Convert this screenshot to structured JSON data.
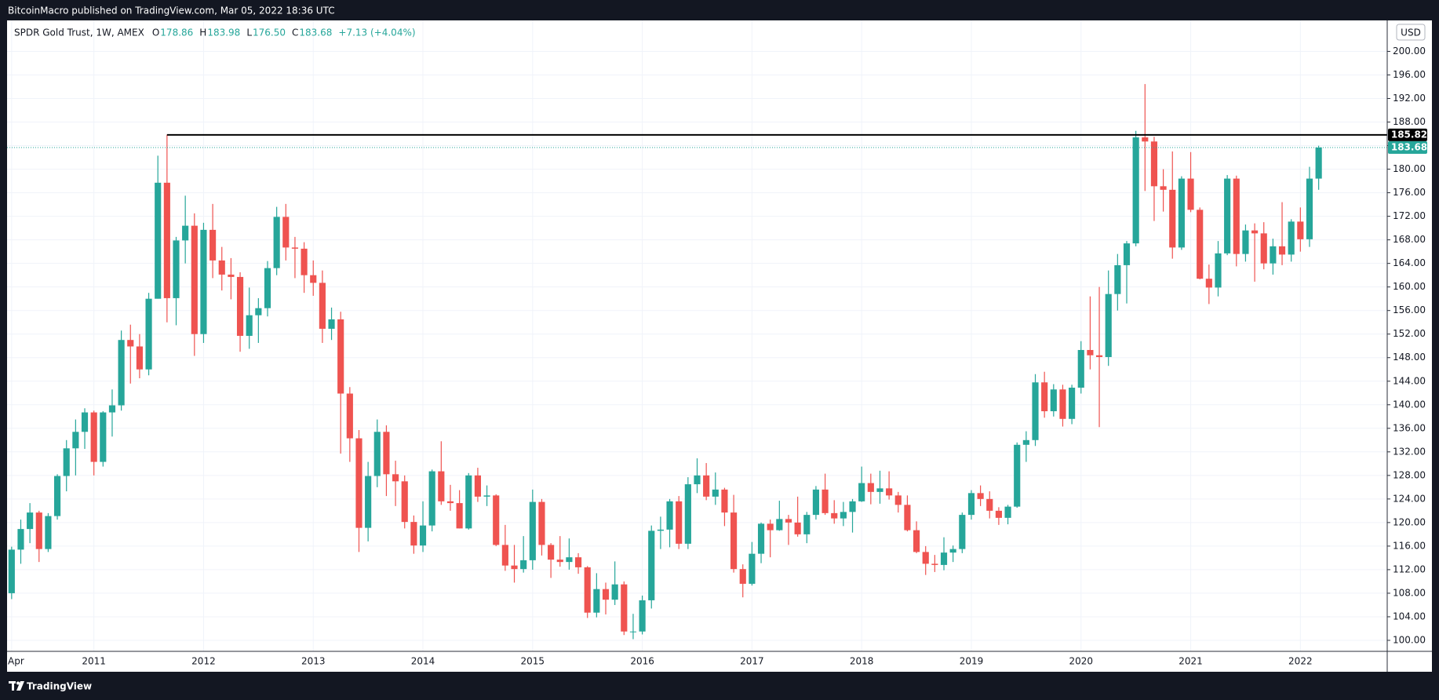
{
  "header": {
    "published": "BitcoinMacro published on TradingView.com, Mar 05, 2022 18:36 UTC"
  },
  "footer": {
    "brand": "TradingView"
  },
  "chart_data": {
    "type": "candlestick",
    "title": "SPDR Gold Trust, 1W, AMEX",
    "ohlc_legend": [
      {
        "key": "O",
        "value": "178.86"
      },
      {
        "key": "H",
        "value": "183.98"
      },
      {
        "key": "L",
        "value": "176.50"
      },
      {
        "key": "C",
        "value": "183.68"
      }
    ],
    "change": "+7.13 (+4.04%)",
    "currency": "USD",
    "up_color": "#26a69a",
    "down_color": "#ef5350",
    "grid": true,
    "ylim": [
      98.13,
      205.26
    ],
    "yticks": [
      {
        "value": 100,
        "label": "100.00"
      },
      {
        "value": 104,
        "label": "104.00"
      },
      {
        "value": 108,
        "label": "108.00"
      },
      {
        "value": 112,
        "label": "112.00"
      },
      {
        "value": 116,
        "label": "116.00"
      },
      {
        "value": 120,
        "label": "120.00"
      },
      {
        "value": 124,
        "label": "124.00"
      },
      {
        "value": 128,
        "label": "128.00"
      },
      {
        "value": 132,
        "label": "132.00"
      },
      {
        "value": 136,
        "label": "136.00"
      },
      {
        "value": 140,
        "label": "140.00"
      },
      {
        "value": 144,
        "label": "144.00"
      },
      {
        "value": 148,
        "label": "148.00"
      },
      {
        "value": 152,
        "label": "152.00"
      },
      {
        "value": 156,
        "label": "156.00"
      },
      {
        "value": 160,
        "label": "160.00"
      },
      {
        "value": 164,
        "label": "164.00"
      },
      {
        "value": 168,
        "label": "168.00"
      },
      {
        "value": 172,
        "label": "172.00"
      },
      {
        "value": 176,
        "label": "176.00"
      },
      {
        "value": 180,
        "label": "180.00"
      },
      {
        "value": 184,
        "label": "184.00"
      },
      {
        "value": 188,
        "label": "188.00"
      },
      {
        "value": 192,
        "label": "192.00"
      },
      {
        "value": 196,
        "label": "196.00"
      },
      {
        "value": 200,
        "label": "200.00"
      }
    ],
    "hline": {
      "value": 185.82,
      "label": "185.82",
      "color": "#000000"
    },
    "last_price": {
      "value": 183.68,
      "label": "183.68"
    },
    "categories": [
      "Apr",
      null,
      null,
      null,
      null,
      null,
      null,
      null,
      null,
      "2011",
      null,
      null,
      null,
      null,
      null,
      null,
      null,
      null,
      null,
      null,
      null,
      "2012",
      null,
      null,
      null,
      null,
      null,
      null,
      null,
      null,
      null,
      null,
      null,
      "2013",
      null,
      null,
      null,
      null,
      null,
      null,
      null,
      null,
      null,
      null,
      null,
      "2014",
      null,
      null,
      null,
      null,
      null,
      null,
      null,
      null,
      null,
      null,
      null,
      "2015",
      null,
      null,
      null,
      null,
      null,
      null,
      null,
      null,
      null,
      null,
      null,
      "2016",
      null,
      null,
      null,
      null,
      null,
      null,
      null,
      null,
      null,
      null,
      null,
      "2017",
      null,
      null,
      null,
      null,
      null,
      null,
      null,
      null,
      null,
      null,
      null,
      "2018",
      null,
      null,
      null,
      null,
      null,
      null,
      null,
      null,
      null,
      null,
      null,
      "2019",
      null,
      null,
      null,
      null,
      null,
      null,
      null,
      null,
      null,
      null,
      null,
      "2020",
      null,
      null,
      null,
      null,
      null,
      null,
      null,
      null,
      null,
      null,
      null,
      "2021",
      null,
      null,
      null,
      null,
      null,
      null,
      null,
      null,
      null,
      null,
      null,
      "2022",
      null,
      null
    ],
    "ohlc": [
      [
        108.0,
        115.9,
        107.0,
        115.4
      ],
      [
        115.4,
        120.5,
        113.0,
        118.9
      ],
      [
        118.9,
        123.3,
        116.5,
        121.7
      ],
      [
        121.7,
        122.0,
        113.3,
        115.5
      ],
      [
        115.5,
        121.6,
        115.0,
        121.1
      ],
      [
        121.1,
        128.2,
        120.5,
        127.9
      ],
      [
        127.9,
        134.0,
        125.3,
        132.6
      ],
      [
        132.6,
        137.5,
        128.0,
        135.4
      ],
      [
        135.4,
        139.4,
        132.5,
        138.7
      ],
      [
        138.7,
        139.0,
        128.0,
        130.3
      ],
      [
        130.3,
        138.9,
        129.5,
        138.7
      ],
      [
        138.7,
        142.6,
        134.6,
        139.9
      ],
      [
        139.9,
        152.6,
        139.0,
        151.0
      ],
      [
        151.0,
        153.6,
        143.6,
        149.9
      ],
      [
        149.9,
        152.0,
        144.5,
        146.0
      ],
      [
        146.0,
        159.0,
        145.0,
        158.0
      ],
      [
        158.0,
        182.3,
        158.0,
        177.7
      ],
      [
        177.7,
        185.85,
        154.0,
        158.1
      ],
      [
        158.1,
        168.5,
        153.5,
        167.9
      ],
      [
        167.9,
        175.5,
        164.0,
        170.4
      ],
      [
        170.4,
        172.5,
        148.3,
        152.0
      ],
      [
        152.0,
        170.9,
        150.5,
        169.7
      ],
      [
        169.7,
        174.1,
        161.5,
        164.5
      ],
      [
        164.5,
        166.8,
        159.4,
        162.1
      ],
      [
        162.1,
        164.9,
        157.9,
        161.7
      ],
      [
        161.7,
        162.5,
        149.0,
        151.7
      ],
      [
        151.7,
        159.9,
        149.5,
        155.2
      ],
      [
        155.2,
        158.1,
        150.5,
        156.4
      ],
      [
        156.4,
        164.4,
        155.0,
        163.2
      ],
      [
        163.2,
        173.6,
        162.0,
        171.9
      ],
      [
        171.9,
        174.1,
        164.5,
        166.7
      ],
      [
        166.7,
        168.5,
        161.5,
        166.5
      ],
      [
        166.5,
        167.6,
        159.0,
        162.0
      ],
      [
        162.0,
        164.5,
        158.5,
        160.7
      ],
      [
        160.7,
        162.8,
        150.5,
        152.9
      ],
      [
        152.9,
        156.5,
        151.0,
        154.5
      ],
      [
        154.5,
        155.8,
        131.7,
        141.9
      ],
      [
        141.9,
        143.0,
        130.3,
        134.3
      ],
      [
        134.3,
        135.7,
        115.0,
        119.1
      ],
      [
        119.1,
        130.3,
        116.8,
        127.9
      ],
      [
        127.9,
        137.5,
        126.0,
        135.4
      ],
      [
        135.4,
        136.5,
        124.5,
        128.2
      ],
      [
        128.2,
        130.5,
        122.8,
        127.0
      ],
      [
        127.0,
        128.0,
        119.0,
        120.1
      ],
      [
        120.1,
        121.2,
        114.7,
        116.1
      ],
      [
        116.1,
        123.6,
        115.0,
        119.5
      ],
      [
        119.5,
        129.0,
        118.5,
        128.7
      ],
      [
        128.7,
        133.8,
        123.0,
        123.6
      ],
      [
        123.6,
        126.4,
        122.0,
        123.3
      ],
      [
        123.3,
        125.5,
        119.0,
        119.0
      ],
      [
        119.0,
        128.4,
        118.8,
        128.0
      ],
      [
        128.0,
        129.3,
        123.5,
        124.4
      ],
      [
        124.4,
        126.3,
        122.8,
        124.6
      ],
      [
        124.6,
        124.8,
        116.0,
        116.2
      ],
      [
        116.2,
        119.6,
        111.8,
        112.7
      ],
      [
        112.7,
        116.2,
        109.8,
        112.1
      ],
      [
        112.1,
        117.7,
        111.5,
        113.6
      ],
      [
        113.6,
        125.6,
        112.0,
        123.5
      ],
      [
        123.5,
        124.0,
        114.4,
        116.2
      ],
      [
        116.2,
        116.5,
        110.6,
        113.7
      ],
      [
        113.7,
        117.7,
        112.5,
        113.3
      ],
      [
        113.3,
        117.3,
        112.0,
        114.1
      ],
      [
        114.1,
        114.8,
        111.3,
        112.4
      ],
      [
        112.4,
        112.6,
        103.8,
        104.7
      ],
      [
        104.7,
        111.4,
        103.9,
        108.7
      ],
      [
        108.7,
        109.8,
        104.4,
        106.9
      ],
      [
        106.9,
        113.4,
        106.0,
        109.5
      ],
      [
        109.5,
        110.0,
        100.9,
        101.5
      ],
      [
        101.5,
        104.5,
        100.2,
        101.5
      ],
      [
        101.5,
        107.6,
        101.0,
        106.8
      ],
      [
        106.8,
        119.5,
        105.4,
        118.6
      ],
      [
        118.6,
        121.0,
        115.5,
        118.8
      ],
      [
        118.8,
        124.0,
        115.8,
        123.6
      ],
      [
        123.6,
        124.5,
        115.5,
        116.4
      ],
      [
        116.4,
        127.7,
        115.5,
        126.5
      ],
      [
        126.5,
        130.9,
        125.0,
        128.0
      ],
      [
        128.0,
        130.1,
        123.8,
        124.4
      ],
      [
        124.4,
        128.5,
        123.0,
        125.6
      ],
      [
        125.6,
        125.9,
        119.4,
        121.7
      ],
      [
        121.7,
        124.7,
        111.5,
        112.1
      ],
      [
        112.1,
        112.9,
        107.3,
        109.6
      ],
      [
        109.6,
        116.7,
        109.3,
        114.7
      ],
      [
        114.7,
        120.0,
        113.1,
        119.8
      ],
      [
        119.8,
        120.5,
        114.1,
        118.7
      ],
      [
        118.7,
        123.7,
        118.6,
        120.6
      ],
      [
        120.6,
        121.3,
        116.2,
        120.0
      ],
      [
        120.0,
        124.4,
        117.6,
        118.0
      ],
      [
        118.0,
        121.8,
        116.5,
        121.3
      ],
      [
        121.3,
        126.2,
        120.5,
        125.6
      ],
      [
        125.6,
        128.3,
        121.3,
        121.6
      ],
      [
        121.6,
        123.8,
        119.8,
        120.7
      ],
      [
        120.7,
        123.5,
        119.4,
        121.8
      ],
      [
        121.8,
        124.0,
        118.3,
        123.6
      ],
      [
        123.6,
        129.5,
        123.5,
        126.7
      ],
      [
        126.7,
        128.3,
        123.1,
        125.2
      ],
      [
        125.2,
        128.8,
        123.2,
        125.8
      ],
      [
        125.8,
        128.7,
        123.9,
        124.6
      ],
      [
        124.6,
        125.2,
        121.7,
        123.0
      ],
      [
        123.0,
        124.6,
        118.5,
        118.7
      ],
      [
        118.7,
        120.2,
        114.8,
        115.0
      ],
      [
        115.0,
        116.0,
        111.1,
        113.0
      ],
      [
        113.0,
        114.5,
        111.6,
        112.8
      ],
      [
        112.8,
        117.5,
        111.9,
        114.9
      ],
      [
        114.9,
        116.1,
        113.3,
        115.5
      ],
      [
        115.5,
        121.7,
        114.8,
        121.3
      ],
      [
        121.3,
        125.5,
        120.5,
        125.0
      ],
      [
        125.0,
        126.3,
        122.8,
        124.0
      ],
      [
        124.0,
        125.3,
        120.7,
        122.0
      ],
      [
        122.0,
        122.6,
        119.6,
        120.8
      ],
      [
        120.8,
        123.0,
        119.7,
        122.7
      ],
      [
        122.7,
        133.6,
        122.5,
        133.2
      ],
      [
        133.2,
        135.5,
        130.3,
        134.0
      ],
      [
        134.0,
        145.2,
        133.0,
        143.8
      ],
      [
        143.8,
        145.6,
        137.8,
        138.9
      ],
      [
        138.9,
        143.5,
        138.0,
        142.6
      ],
      [
        142.6,
        143.4,
        136.3,
        137.6
      ],
      [
        137.6,
        143.4,
        136.7,
        142.9
      ],
      [
        142.9,
        150.8,
        141.9,
        149.3
      ],
      [
        149.3,
        158.4,
        146.0,
        148.4
      ],
      [
        148.4,
        160.0,
        136.2,
        148.1
      ],
      [
        148.1,
        162.8,
        146.6,
        158.8
      ],
      [
        158.8,
        165.6,
        156.0,
        163.7
      ],
      [
        163.7,
        167.8,
        157.2,
        167.4
      ],
      [
        167.4,
        186.5,
        166.9,
        185.4
      ],
      [
        185.4,
        194.45,
        176.3,
        184.7
      ],
      [
        184.7,
        185.5,
        171.2,
        177.1
      ],
      [
        177.1,
        180.0,
        172.8,
        176.5
      ],
      [
        176.5,
        183.0,
        164.8,
        166.7
      ],
      [
        166.7,
        178.8,
        166.3,
        178.4
      ],
      [
        178.4,
        182.9,
        172.7,
        173.1
      ],
      [
        173.1,
        173.5,
        161.3,
        161.4
      ],
      [
        161.4,
        163.8,
        157.1,
        159.9
      ],
      [
        159.9,
        167.8,
        158.4,
        165.7
      ],
      [
        165.7,
        179.0,
        165.4,
        178.4
      ],
      [
        178.4,
        178.9,
        163.5,
        165.6
      ],
      [
        165.6,
        170.6,
        164.3,
        169.6
      ],
      [
        169.6,
        170.8,
        160.9,
        169.1
      ],
      [
        169.1,
        171.0,
        163.0,
        164.0
      ],
      [
        164.0,
        168.2,
        162.1,
        166.9
      ],
      [
        166.9,
        174.4,
        163.7,
        165.5
      ],
      [
        165.5,
        171.5,
        164.3,
        171.1
      ],
      [
        171.1,
        173.5,
        166.0,
        168.1
      ],
      [
        168.1,
        180.4,
        166.8,
        178.4
      ],
      [
        178.4,
        183.98,
        176.5,
        183.68
      ]
    ]
  }
}
